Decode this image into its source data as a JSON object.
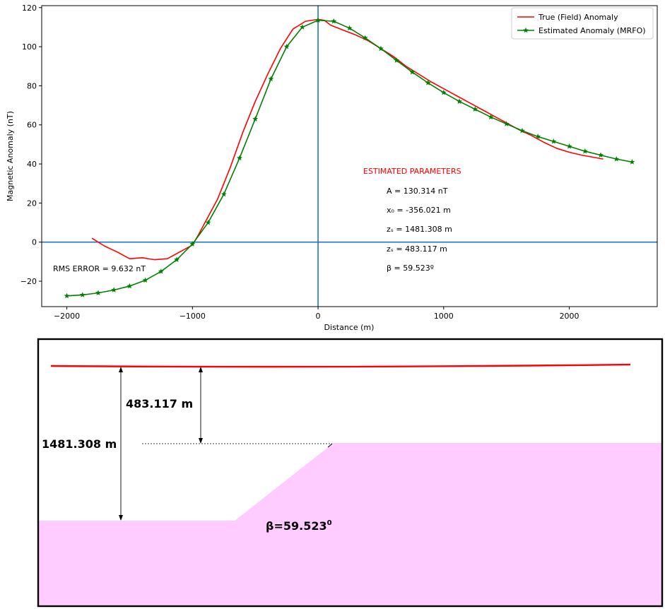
{
  "chart_data": {
    "type": "line",
    "xlabel": "Distance (m)",
    "ylabel": "Magnetic Anomaly (nT)",
    "xlim": [
      -2200,
      2700
    ],
    "ylim": [
      -33,
      121
    ],
    "xticks": [
      -2000,
      -1000,
      0,
      1000,
      2000
    ],
    "yticks": [
      -20,
      0,
      20,
      40,
      60,
      80,
      100,
      120
    ],
    "xtick_labels": [
      "−2000",
      "−1000",
      "0",
      "1000",
      "2000"
    ],
    "ytick_labels": [
      "−20",
      "0",
      "20",
      "40",
      "60",
      "80",
      "100",
      "120"
    ],
    "legend_position": "top-right",
    "reference_lines": {
      "x": 0,
      "y": 0,
      "color": "#1f77b4"
    },
    "series": [
      {
        "name": "True (Field) Anomaly",
        "color": "#ff0000",
        "marker": "none",
        "x": [
          -1800,
          -1700,
          -1600,
          -1500,
          -1400,
          -1350,
          -1300,
          -1200,
          -1100,
          -1000,
          -950,
          -900,
          -800,
          -700,
          -600,
          -500,
          -400,
          -300,
          -200,
          -100,
          0,
          50,
          100,
          200,
          300,
          400,
          500,
          600,
          700,
          800,
          900,
          1000,
          1100,
          1200,
          1300,
          1400,
          1500,
          1600,
          1700,
          1800,
          1900,
          2000,
          2100,
          2270
        ],
        "y": [
          2,
          -2,
          -5,
          -8.5,
          -8,
          -8.5,
          -9,
          -8.5,
          -5,
          -1.5,
          4,
          10,
          22,
          38,
          56,
          72,
          86,
          99,
          109,
          113,
          114,
          113.5,
          111,
          108.5,
          106,
          103,
          99,
          95,
          90,
          86,
          82,
          78.5,
          75,
          71.5,
          68,
          64.5,
          61,
          57.5,
          54.5,
          51,
          48,
          46,
          44.5,
          42.5
        ]
      },
      {
        "name": "Estimated Anomaly (MRFO)",
        "color": "#008000",
        "marker": "star",
        "x": [
          -2000,
          -1875,
          -1750,
          -1625,
          -1500,
          -1375,
          -1250,
          -1125,
          -1000,
          -875,
          -750,
          -625,
          -500,
          -375,
          -250,
          -125,
          0,
          125,
          250,
          375,
          500,
          625,
          750,
          875,
          1000,
          1125,
          1250,
          1375,
          1500,
          1625,
          1750,
          1875,
          2000,
          2125,
          2250,
          2375,
          2500
        ],
        "y": [
          -27.5,
          -27,
          -26,
          -24.5,
          -22.5,
          -19.5,
          -15,
          -9,
          -1,
          10,
          24.5,
          43,
          63,
          83.5,
          100,
          110,
          113.5,
          113,
          109.5,
          104.5,
          99,
          93,
          87,
          81.5,
          76.5,
          72,
          68,
          64,
          60.5,
          57,
          54,
          51.5,
          49,
          46.5,
          44.5,
          42.5,
          41
        ]
      }
    ],
    "annotations": {
      "heading": "ESTIMATED PARAMETERS",
      "params": [
        "A = 130.314 nT",
        "x₀ = -356.021 m",
        "zₛ = 1481.308 m",
        "zₛ = 483.117 m",
        "β = 59.523º"
      ],
      "rms": "RMS ERROR = 9.632 nT"
    }
  },
  "model": {
    "deep_depth_label": "1481.308 m",
    "shallow_depth_label": "483.117 m",
    "angle_label_text": "β=59.523",
    "angle_label_sup": "0",
    "surface_color": "#ff0000",
    "body_color": "#ffccff",
    "frame_color": "#000000"
  }
}
